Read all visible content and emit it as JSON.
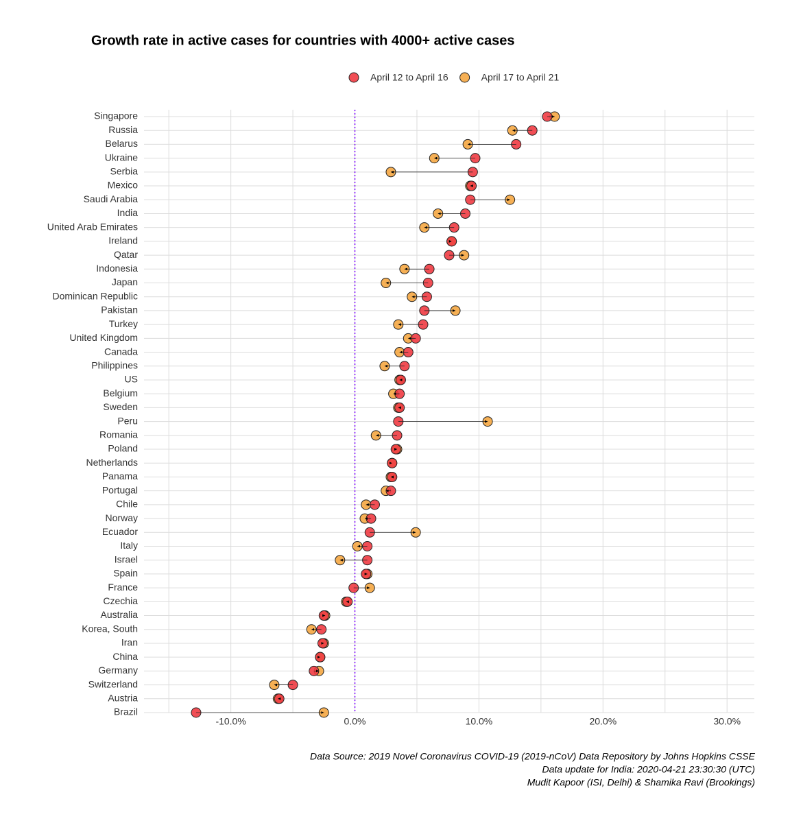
{
  "chart_data": {
    "type": "dumbbell",
    "title": "Growth rate in active cases for countries with 4000+ active cases",
    "categories": [
      "Singapore",
      "Russia",
      "Belarus",
      "Ukraine",
      "Serbia",
      "Mexico",
      "Saudi Arabia",
      "India",
      "United Arab Emirates",
      "Ireland",
      "Qatar",
      "Indonesia",
      "Japan",
      "Dominican Republic",
      "Pakistan",
      "Turkey",
      "United Kingdom",
      "Canada",
      "Philippines",
      "US",
      "Belgium",
      "Sweden",
      "Peru",
      "Romania",
      "Poland",
      "Netherlands",
      "Panama",
      "Portugal",
      "Chile",
      "Norway",
      "Ecuador",
      "Italy",
      "Israel",
      "Spain",
      "France",
      "Czechia",
      "Australia",
      "Korea, South",
      "Iran",
      "China",
      "Germany",
      "Switzerland",
      "Austria",
      "Brazil"
    ],
    "series": [
      {
        "name": "April 12 to April 16",
        "color": "#ef3b43",
        "values": [
          15.5,
          14.3,
          13.0,
          9.7,
          9.5,
          9.4,
          9.3,
          8.9,
          8.0,
          7.8,
          7.6,
          6.0,
          5.9,
          5.8,
          5.6,
          5.5,
          4.9,
          4.3,
          4.0,
          3.7,
          3.6,
          3.6,
          3.5,
          3.4,
          3.3,
          3.0,
          3.0,
          2.9,
          1.6,
          1.3,
          1.2,
          1.0,
          1.0,
          0.9,
          -0.1,
          -0.6,
          -2.5,
          -2.7,
          -2.6,
          -2.8,
          -3.3,
          -5.0,
          -6.1,
          -12.8
        ]
      },
      {
        "name": "April 17 to April 21",
        "color": "#f5a742",
        "values": [
          16.1,
          12.7,
          9.1,
          6.4,
          2.9,
          9.3,
          12.5,
          6.7,
          5.6,
          7.8,
          8.8,
          4.0,
          2.5,
          4.6,
          8.1,
          3.5,
          4.3,
          3.6,
          2.4,
          3.6,
          3.1,
          3.5,
          10.7,
          1.7,
          3.4,
          3.0,
          2.9,
          2.5,
          0.9,
          0.8,
          4.9,
          0.2,
          -1.2,
          1.0,
          1.2,
          -0.7,
          -2.4,
          -3.5,
          -2.5,
          -2.8,
          -2.9,
          -6.5,
          -6.2,
          -2.5
        ]
      }
    ],
    "xlim": [
      -17.0,
      32.2
    ],
    "xticks": [
      {
        "value": -10,
        "label": "-10.0%"
      },
      {
        "value": 0,
        "label": "0.0%"
      },
      {
        "value": 10,
        "label": "10.0%"
      },
      {
        "value": 20,
        "label": "20.0%"
      },
      {
        "value": 30,
        "label": "30.0%"
      }
    ],
    "xminor": [
      -15,
      -5,
      5,
      15,
      25
    ],
    "vline": 0,
    "legend": "top",
    "grid": true,
    "caption": [
      "Data Source: 2019 Novel Coronavirus COVID-19 (2019-nCoV) Data Repository by Johns Hopkins CSSE",
      "Data update for India: 2020-04-21 23:30:30 (UTC)",
      "Mudit Kapoor (ISI, Delhi) & Shamika Ravi (Brookings)"
    ]
  }
}
